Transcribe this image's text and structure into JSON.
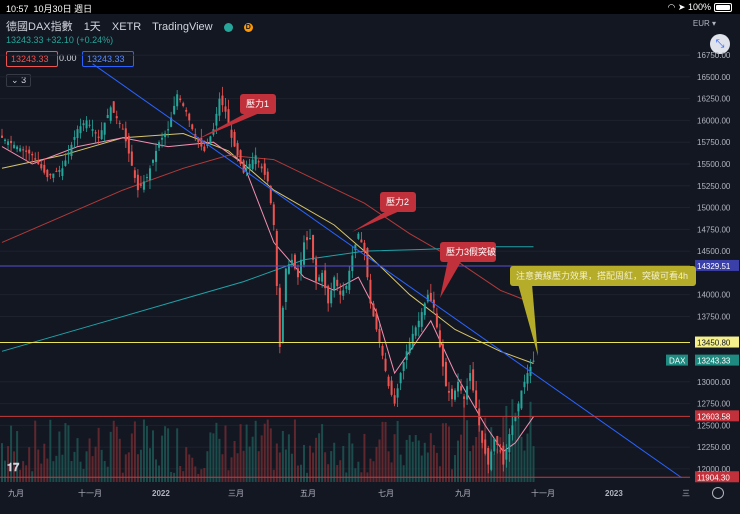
{
  "status_bar": {
    "time": "10:57",
    "date": "10月30日 週日",
    "battery": "100%"
  },
  "header": {
    "symbol": "德國DAX指數",
    "interval": "1天",
    "exchange": "XETR",
    "platform": "TradingView",
    "badge_green": "",
    "badge_orange": "D"
  },
  "quote": {
    "price": "13243.33",
    "change": "+32.10 (+0.24%)"
  },
  "order_panel": {
    "sell": "13243.33",
    "spread": "0.00",
    "buy": "13243.33"
  },
  "indicators_count": "3",
  "currency": "EUR",
  "colors": {
    "background": "#131722",
    "up": "#26a69a",
    "down": "#ef5350",
    "trendline": "#2962ff",
    "ma_yellow": "#d8c56a",
    "ma_pink": "#f48fb1",
    "ma_red": "#b23a3a",
    "ma_teal": "#1fa2a8",
    "callout_red": "#c0313b",
    "callout_yellow": "#b5ad2a"
  },
  "chart_data": {
    "type": "candlestick",
    "symbol": "DAX",
    "y_axis": {
      "ticks": [
        "16750.00",
        "16500.00",
        "16250.00",
        "16000.00",
        "15750.00",
        "15500.00",
        "15250.00",
        "15000.00",
        "14750.00",
        "14500.00",
        "14000.00",
        "13750.00",
        "13000.00",
        "12750.00",
        "12500.00",
        "12250.00",
        "12000.00"
      ],
      "range": [
        11850,
        16900
      ]
    },
    "x_axis": {
      "ticks": [
        "九月",
        "十一月",
        "2022",
        "三月",
        "五月",
        "七月",
        "九月",
        "十一月",
        "2023",
        "三"
      ]
    },
    "horizontal_levels": [
      {
        "label": "14329.51",
        "value": 14329.51,
        "style": "purple"
      },
      {
        "label": "13450.80",
        "value": 13450.8,
        "style": "yellow"
      },
      {
        "label": "12603.58",
        "value": 12603.58,
        "style": "red"
      },
      {
        "label": "11904.30",
        "value": 11904.3,
        "style": "red"
      }
    ],
    "last_price_label": {
      "symbol": "DAX",
      "value": "13243.33"
    },
    "annotations": [
      {
        "text": "壓力1",
        "color": "red"
      },
      {
        "text": "壓力2",
        "color": "red"
      },
      {
        "text": "壓力3假突破",
        "color": "red"
      },
      {
        "text": "注意黃線壓力效果，搭配周紅，突破可看4h",
        "color": "yellow"
      }
    ],
    "price_path": [
      [
        0,
        15800
      ],
      [
        5,
        15700
      ],
      [
        10,
        15600
      ],
      [
        15,
        15350
      ],
      [
        20,
        15450
      ],
      [
        25,
        15900
      ],
      [
        28,
        16000
      ],
      [
        32,
        15800
      ],
      [
        36,
        16150
      ],
      [
        40,
        15900
      ],
      [
        45,
        15200
      ],
      [
        48,
        15350
      ],
      [
        52,
        15750
      ],
      [
        55,
        15900
      ],
      [
        58,
        16300
      ],
      [
        61,
        16100
      ],
      [
        64,
        15800
      ],
      [
        67,
        15650
      ],
      [
        70,
        15900
      ],
      [
        72,
        16250
      ],
      [
        74,
        16100
      ],
      [
        76,
        15800
      ],
      [
        80,
        15400
      ],
      [
        84,
        15600
      ],
      [
        88,
        15300
      ],
      [
        90,
        14800
      ],
      [
        92,
        13400
      ],
      [
        94,
        14300
      ],
      [
        96,
        14400
      ],
      [
        98,
        14200
      ],
      [
        100,
        14600
      ],
      [
        102,
        14650
      ],
      [
        104,
        14150
      ],
      [
        106,
        14250
      ],
      [
        108,
        13900
      ],
      [
        110,
        14200
      ],
      [
        112,
        14000
      ],
      [
        114,
        14100
      ],
      [
        116,
        14450
      ],
      [
        118,
        14700
      ],
      [
        120,
        14500
      ],
      [
        122,
        13900
      ],
      [
        124,
        13600
      ],
      [
        126,
        13300
      ],
      [
        128,
        12950
      ],
      [
        130,
        12750
      ],
      [
        132,
        13100
      ],
      [
        134,
        13350
      ],
      [
        136,
        13550
      ],
      [
        138,
        13700
      ],
      [
        140,
        13900
      ],
      [
        141,
        14000
      ],
      [
        143,
        13850
      ],
      [
        145,
        13400
      ],
      [
        147,
        12950
      ],
      [
        149,
        12800
      ],
      [
        151,
        13000
      ],
      [
        153,
        12800
      ],
      [
        155,
        13100
      ],
      [
        157,
        12700
      ],
      [
        159,
        12300
      ],
      [
        161,
        12050
      ],
      [
        163,
        12350
      ],
      [
        165,
        12200
      ],
      [
        166,
        12050
      ],
      [
        168,
        12400
      ],
      [
        170,
        12600
      ],
      [
        172,
        12900
      ],
      [
        174,
        13100
      ],
      [
        176,
        13243
      ]
    ],
    "moving_averages": [
      {
        "color": "yellow",
        "points": [
          [
            0,
            15450
          ],
          [
            20,
            15600
          ],
          [
            40,
            15800
          ],
          [
            60,
            15850
          ],
          [
            75,
            15650
          ],
          [
            90,
            15200
          ],
          [
            110,
            14800
          ],
          [
            120,
            14500
          ],
          [
            135,
            14000
          ],
          [
            150,
            13600
          ],
          [
            165,
            13350
          ],
          [
            176,
            13210
          ]
        ]
      },
      {
        "color": "pink",
        "points": [
          [
            0,
            15700
          ],
          [
            10,
            15500
          ],
          [
            25,
            15700
          ],
          [
            40,
            15800
          ],
          [
            55,
            15700
          ],
          [
            70,
            15750
          ],
          [
            80,
            15500
          ],
          [
            90,
            14600
          ],
          [
            100,
            14200
          ],
          [
            110,
            14050
          ],
          [
            118,
            14200
          ],
          [
            124,
            13800
          ],
          [
            130,
            13100
          ],
          [
            136,
            13400
          ],
          [
            142,
            13700
          ],
          [
            150,
            13100
          ],
          [
            160,
            12500
          ],
          [
            166,
            12200
          ],
          [
            170,
            12300
          ],
          [
            176,
            12600
          ]
        ]
      },
      {
        "color": "red",
        "points": [
          [
            0,
            14600
          ],
          [
            20,
            14900
          ],
          [
            40,
            15200
          ],
          [
            60,
            15450
          ],
          [
            75,
            15600
          ],
          [
            90,
            15550
          ],
          [
            105,
            15300
          ],
          [
            120,
            15050
          ],
          [
            135,
            14700
          ],
          [
            150,
            14400
          ],
          [
            165,
            14050
          ],
          [
            176,
            13900
          ]
        ]
      },
      {
        "color": "teal",
        "points": [
          [
            0,
            13350
          ],
          [
            30,
            13650
          ],
          [
            60,
            13950
          ],
          [
            80,
            14150
          ],
          [
            100,
            14400
          ],
          [
            120,
            14500
          ],
          [
            140,
            14520
          ],
          [
            160,
            14550
          ],
          [
            176,
            14550
          ]
        ]
      }
    ],
    "trendline": {
      "from": [
        30,
        16650
      ],
      "to": [
        225,
        11900
      ]
    }
  }
}
